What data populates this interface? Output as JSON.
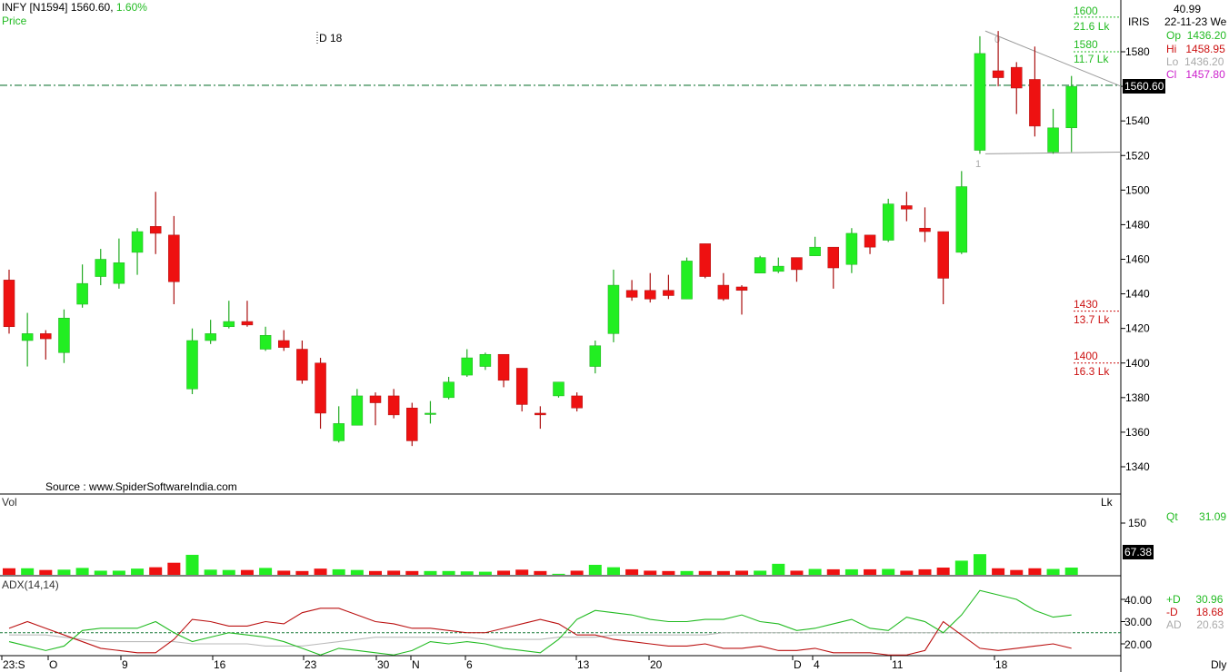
{
  "header": {
    "symbol": "INFY [N1594]",
    "last_price": "1560.60,",
    "change_pct": "1.60%",
    "price_label": "Price",
    "marker": "D 18",
    "source": "Source : www.SpiderSoftwareIndia.com",
    "iris": "IRIS"
  },
  "info": {
    "top_value": "40.99",
    "date": "22-11-23 We",
    "op_label": "Op",
    "op_value": "1436.20",
    "hi_label": "Hi",
    "hi_value": "1458.95",
    "lo_label": "Lo",
    "lo_value": "1436.20",
    "cl_label": "Cl",
    "cl_value": "1457.80"
  },
  "price_levels": [
    {
      "price": "1600",
      "vol": "21.6 Lk",
      "color": "#22bb22"
    },
    {
      "price": "1580",
      "vol": "11.7 Lk",
      "color": "#22bb22"
    },
    {
      "price": "1430",
      "vol": "13.7 Lk",
      "color": "#cc1111"
    },
    {
      "price": "1400",
      "vol": "16.3 Lk",
      "color": "#cc1111"
    }
  ],
  "current_price_box": "1560.60",
  "volume_panel": {
    "label": "Vol",
    "unit": "Lk",
    "tick": "150",
    "box_value": "67.38",
    "qt_label": "Qt",
    "qt_value": "31.09"
  },
  "adx_panel": {
    "label": "ADX(14,14)",
    "ticks": [
      "40.00",
      "30.00",
      "20.00"
    ],
    "pdi_label": "+D",
    "pdi_value": "30.96",
    "mdi_label": "-D",
    "mdi_value": "18.68",
    "adx_label": "AD",
    "adx_value": "20.63"
  },
  "xaxis": {
    "labels": [
      "23:S",
      "O",
      "9",
      "16",
      "23",
      "30",
      "N",
      "6",
      "13",
      "20",
      "D",
      "4",
      "11",
      "18"
    ],
    "dly": "Dly"
  },
  "colors": {
    "up": "#22ee22",
    "down": "#ee1111",
    "pdi": "#22bb22",
    "mdi": "#bb1111",
    "adx": "#bbbbbb"
  },
  "chart_data": {
    "type": "candlestick",
    "price_axis": {
      "ticks": [
        1340,
        1360,
        1380,
        1400,
        1420,
        1440,
        1460,
        1480,
        1500,
        1520,
        1540,
        1560,
        1580
      ],
      "ylim": [
        1330,
        1610
      ]
    },
    "reference_line": 1560.6,
    "triangle_labels": [
      "0",
      "1"
    ],
    "candles": [
      {
        "o": 1448,
        "h": 1454,
        "l": 1417,
        "c": 1421
      },
      {
        "o": 1413,
        "h": 1429,
        "l": 1398,
        "c": 1417
      },
      {
        "o": 1417,
        "h": 1419,
        "l": 1402,
        "c": 1414
      },
      {
        "o": 1406,
        "h": 1431,
        "l": 1400,
        "c": 1426
      },
      {
        "o": 1434,
        "h": 1457,
        "l": 1432,
        "c": 1446
      },
      {
        "o": 1450,
        "h": 1466,
        "l": 1445,
        "c": 1460
      },
      {
        "o": 1446,
        "h": 1472,
        "l": 1443,
        "c": 1458
      },
      {
        "o": 1464,
        "h": 1478,
        "l": 1451,
        "c": 1476
      },
      {
        "o": 1479,
        "h": 1499,
        "l": 1463,
        "c": 1475
      },
      {
        "o": 1474,
        "h": 1485,
        "l": 1434,
        "c": 1447
      },
      {
        "o": 1385,
        "h": 1420,
        "l": 1382,
        "c": 1413
      },
      {
        "o": 1413,
        "h": 1425,
        "l": 1411,
        "c": 1417
      },
      {
        "o": 1421,
        "h": 1436,
        "l": 1420,
        "c": 1424
      },
      {
        "o": 1424,
        "h": 1436,
        "l": 1421,
        "c": 1422
      },
      {
        "o": 1408,
        "h": 1421,
        "l": 1407,
        "c": 1416
      },
      {
        "o": 1413,
        "h": 1419,
        "l": 1407,
        "c": 1409
      },
      {
        "o": 1408,
        "h": 1413,
        "l": 1388,
        "c": 1390
      },
      {
        "o": 1400,
        "h": 1403,
        "l": 1362,
        "c": 1371
      },
      {
        "o": 1355,
        "h": 1375,
        "l": 1354,
        "c": 1365
      },
      {
        "o": 1364,
        "h": 1385,
        "l": 1364,
        "c": 1381
      },
      {
        "o": 1381,
        "h": 1383,
        "l": 1364,
        "c": 1377
      },
      {
        "o": 1381,
        "h": 1385,
        "l": 1368,
        "c": 1370
      },
      {
        "o": 1374,
        "h": 1377,
        "l": 1352,
        "c": 1355
      },
      {
        "o": 1371,
        "h": 1378,
        "l": 1365,
        "c": 1371
      },
      {
        "o": 1380,
        "h": 1392,
        "l": 1379,
        "c": 1389
      },
      {
        "o": 1393,
        "h": 1408,
        "l": 1392,
        "c": 1403
      },
      {
        "o": 1398,
        "h": 1406,
        "l": 1396,
        "c": 1405
      },
      {
        "o": 1405,
        "h": 1405,
        "l": 1386,
        "c": 1390
      },
      {
        "o": 1397,
        "h": 1397,
        "l": 1372,
        "c": 1376
      },
      {
        "o": 1371,
        "h": 1375,
        "l": 1362,
        "c": 1370
      },
      {
        "o": 1381,
        "h": 1389,
        "l": 1380,
        "c": 1389
      },
      {
        "o": 1381,
        "h": 1383,
        "l": 1372,
        "c": 1374
      },
      {
        "o": 1398,
        "h": 1413,
        "l": 1394,
        "c": 1410
      },
      {
        "o": 1417,
        "h": 1454,
        "l": 1412,
        "c": 1445
      },
      {
        "o": 1442,
        "h": 1448,
        "l": 1436,
        "c": 1438
      },
      {
        "o": 1442,
        "h": 1452,
        "l": 1435,
        "c": 1437
      },
      {
        "o": 1442,
        "h": 1451,
        "l": 1437,
        "c": 1439
      },
      {
        "o": 1437,
        "h": 1461,
        "l": 1437,
        "c": 1459
      },
      {
        "o": 1469,
        "h": 1469,
        "l": 1449,
        "c": 1450
      },
      {
        "o": 1445,
        "h": 1452,
        "l": 1436,
        "c": 1437
      },
      {
        "o": 1444,
        "h": 1445,
        "l": 1428,
        "c": 1442
      },
      {
        "o": 1452,
        "h": 1462,
        "l": 1452,
        "c": 1461
      },
      {
        "o": 1453,
        "h": 1461,
        "l": 1452,
        "c": 1456
      },
      {
        "o": 1461,
        "h": 1461,
        "l": 1447,
        "c": 1454
      },
      {
        "o": 1462,
        "h": 1473,
        "l": 1462,
        "c": 1467
      },
      {
        "o": 1467,
        "h": 1467,
        "l": 1443,
        "c": 1455
      },
      {
        "o": 1457,
        "h": 1478,
        "l": 1452,
        "c": 1475
      },
      {
        "o": 1474,
        "h": 1474,
        "l": 1463,
        "c": 1467
      },
      {
        "o": 1471,
        "h": 1495,
        "l": 1470,
        "c": 1492
      },
      {
        "o": 1491,
        "h": 1499,
        "l": 1482,
        "c": 1489
      },
      {
        "o": 1478,
        "h": 1490,
        "l": 1470,
        "c": 1476
      },
      {
        "o": 1476,
        "h": 1476,
        "l": 1434,
        "c": 1449
      },
      {
        "o": 1464,
        "h": 1511,
        "l": 1463,
        "c": 1502
      },
      {
        "o": 1523,
        "h": 1589,
        "l": 1521,
        "c": 1579
      },
      {
        "o": 1569,
        "h": 1592,
        "l": 1560,
        "c": 1565
      },
      {
        "o": 1571,
        "h": 1574,
        "l": 1544,
        "c": 1559
      },
      {
        "o": 1564,
        "h": 1583,
        "l": 1531,
        "c": 1537
      },
      {
        "o": 1522,
        "h": 1547,
        "l": 1521,
        "c": 1536
      },
      {
        "o": 1536,
        "h": 1566,
        "l": 1522,
        "c": 1560
      }
    ],
    "volume": [
      19,
      19,
      14,
      15,
      20,
      12,
      12,
      18,
      22,
      35,
      58,
      15,
      14,
      14,
      20,
      12,
      11,
      18,
      16,
      14,
      11,
      12,
      11,
      11,
      11,
      10,
      9,
      12,
      15,
      11,
      3,
      12,
      29,
      22,
      16,
      12,
      11,
      11,
      11,
      11,
      12,
      12,
      32,
      12,
      17,
      16,
      16,
      16,
      17,
      12,
      16,
      21,
      41,
      60,
      19,
      14,
      19,
      17,
      21
    ],
    "adx": {
      "ticks": [
        40,
        30,
        20
      ],
      "reference": 25,
      "pdi": [
        21,
        19,
        17,
        19,
        26,
        27,
        27,
        27,
        30,
        25,
        21,
        23,
        25,
        24,
        23,
        21,
        18,
        15,
        18,
        17,
        16,
        15,
        17,
        21,
        20,
        21,
        20,
        18,
        17,
        16,
        22,
        31,
        35,
        34,
        33,
        31,
        30,
        30,
        31,
        31,
        33,
        30,
        29,
        26,
        27,
        29,
        31,
        27,
        26,
        32,
        30,
        25,
        33,
        44,
        42,
        40,
        35,
        32,
        33
      ],
      "mdi": [
        27,
        30,
        27,
        24,
        21,
        18,
        17,
        16,
        16,
        22,
        31,
        30,
        28,
        28,
        30,
        29,
        34,
        36,
        36,
        33,
        30,
        29,
        27,
        27,
        26,
        25,
        25,
        27,
        29,
        31,
        29,
        24,
        24,
        22,
        21,
        20,
        19,
        19,
        20,
        18,
        18,
        19,
        17,
        17,
        18,
        16,
        16,
        16,
        15,
        15,
        17,
        30,
        24,
        18,
        17,
        18,
        19,
        20,
        18
      ],
      "adx": [
        24,
        24,
        24,
        23,
        22,
        21,
        21,
        21,
        21,
        21,
        20,
        20,
        20,
        20,
        19,
        19,
        19,
        20,
        21,
        22,
        23,
        23,
        23,
        23,
        23,
        23,
        22,
        22,
        22,
        22,
        23,
        23,
        23,
        24,
        24,
        24,
        24,
        24,
        24,
        25,
        25,
        25,
        25,
        25,
        25,
        25,
        25,
        25,
        25,
        25,
        25,
        25,
        25,
        25,
        25,
        25,
        25,
        25,
        25
      ]
    }
  }
}
